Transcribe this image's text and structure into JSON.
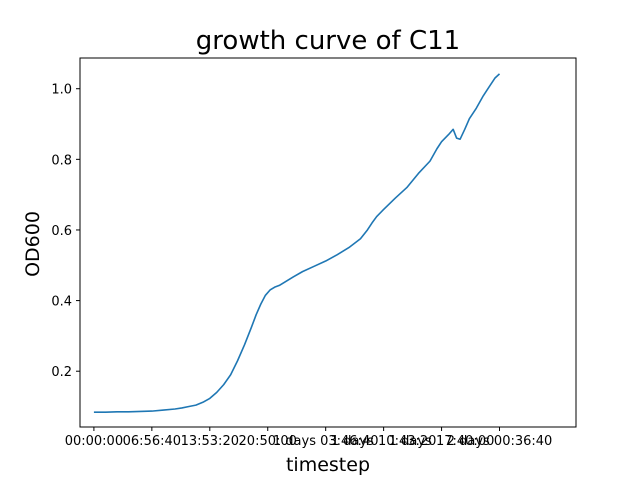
{
  "chart_data": {
    "type": "line",
    "title": "growth curve of C11",
    "xlabel": "timestep",
    "ylabel": "OD600",
    "xlim_seconds": [
      -6000,
      208000
    ],
    "ylim": [
      0.042,
      1.087
    ],
    "x_tick_values_seconds": [
      0,
      25000,
      50000,
      75000,
      100000,
      125000,
      150000,
      175000
    ],
    "x_tick_labels": [
      "00:00:00",
      "06:56:40",
      "13:53:20",
      "20:50:00",
      "1 days 03:46:40",
      "1 days 10:43:20",
      "1 days 17:40:00",
      "2 days 00:36:40"
    ],
    "y_ticks": [
      0.2,
      0.4,
      0.6,
      0.8,
      1.0
    ],
    "y_tick_labels": [
      "0.2",
      "0.4",
      "0.6",
      "0.8",
      "1.0"
    ],
    "grid": false,
    "series": [
      {
        "color": "#1f77b4",
        "x_seconds": [
          0,
          5000,
          10000,
          15000,
          20000,
          25000,
          30000,
          35000,
          38000,
          41000,
          44000,
          47000,
          50000,
          53000,
          56000,
          59000,
          62000,
          65000,
          68000,
          70000,
          72000,
          74000,
          76000,
          78000,
          80000,
          83000,
          86000,
          90000,
          95000,
          100000,
          105000,
          110000,
          115000,
          118000,
          120000,
          122000,
          125000,
          130000,
          135000,
          140000,
          145000,
          148000,
          150000,
          153000,
          155000,
          156500,
          158000,
          160000,
          162000,
          165000,
          168000,
          170000,
          173000,
          175000
        ],
        "y": [
          0.084,
          0.084,
          0.085,
          0.085,
          0.086,
          0.087,
          0.09,
          0.093,
          0.096,
          0.1,
          0.104,
          0.112,
          0.123,
          0.14,
          0.162,
          0.19,
          0.23,
          0.275,
          0.325,
          0.36,
          0.39,
          0.415,
          0.43,
          0.438,
          0.443,
          0.455,
          0.467,
          0.482,
          0.497,
          0.512,
          0.53,
          0.55,
          0.575,
          0.6,
          0.62,
          0.638,
          0.658,
          0.69,
          0.72,
          0.76,
          0.795,
          0.83,
          0.85,
          0.87,
          0.885,
          0.86,
          0.857,
          0.885,
          0.915,
          0.945,
          0.98,
          1.0,
          1.03,
          1.042
        ]
      }
    ]
  }
}
